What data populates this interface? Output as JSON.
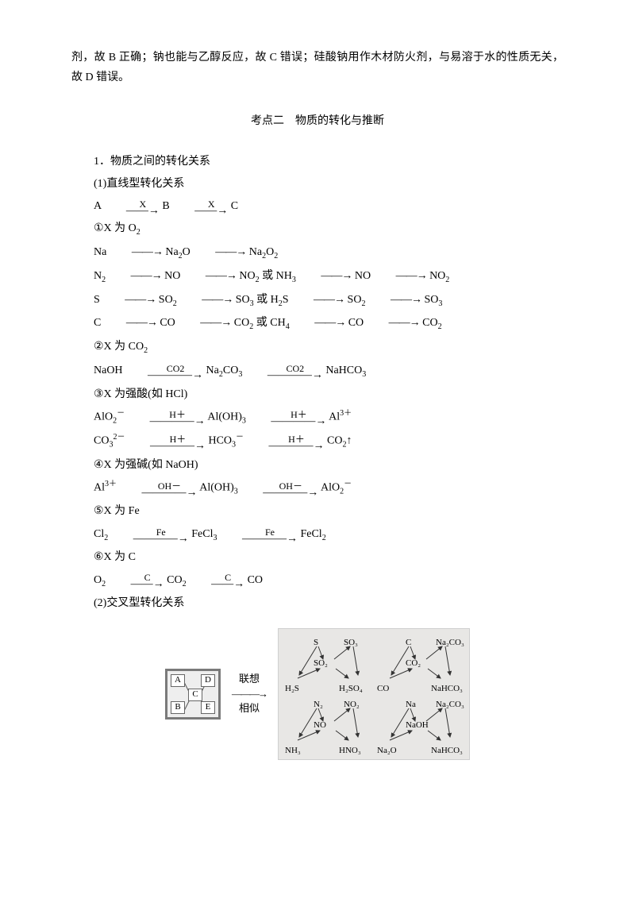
{
  "intro": "剂，故 B 正确；钠也能与乙醇反应，故 C 错误；硅酸钠用作木材防火剂，与易溶于水的性质无关，故 D 错误。",
  "section_title": "考点二　物质的转化与推断",
  "h1": "1．物质之间的转化关系",
  "h1_1": "(1)直线型转化关系",
  "line_generic": {
    "A": "A",
    "B": "B",
    "C": "C",
    "X": "X"
  },
  "case1_title": "①X 为 O",
  "case1_sub": "2",
  "case1_l1": [
    "Na",
    "Na",
    "O",
    "Na",
    "O"
  ],
  "case1_l2": [
    "N",
    "NO",
    "NO",
    "或 NH",
    "NO",
    "NO"
  ],
  "case1_l3": [
    "S",
    "SO",
    "SO",
    "或 H",
    "S",
    "SO",
    "SO"
  ],
  "case1_l4": [
    "C",
    "CO",
    "CO",
    "或 CH",
    "CO",
    "CO"
  ],
  "case2_title": "②X 为 CO",
  "case2_line": [
    "NaOH",
    "CO2",
    "Na",
    "CO",
    "CO2",
    "NaHCO"
  ],
  "case3_title": "③X 为强酸(如 HCl)",
  "case3_l1": [
    "AlO",
    "H＋",
    "Al(OH)",
    "H＋",
    "Al"
  ],
  "case3_l2": [
    "CO",
    "H＋",
    "HCO",
    "H＋",
    "CO",
    "↑"
  ],
  "case4_title": "④X 为强碱(如 NaOH)",
  "case4_line": [
    "Al",
    "OH－",
    "Al(OH)",
    "OH－",
    "AlO"
  ],
  "case5_title": "⑤X 为 Fe",
  "case5_line": [
    "Cl",
    "Fe",
    "FeCl",
    "Fe",
    "FeCl"
  ],
  "case6_title": "⑥X 为 C",
  "case6_line": [
    "O",
    "C",
    "CO",
    "C",
    "CO"
  ],
  "h1_2": "(2)交叉型转化关系",
  "abcde": {
    "A": "A",
    "B": "B",
    "C": "C",
    "D": "D",
    "E": "E"
  },
  "assoc": {
    "l1": "联想",
    "l2": "相似"
  },
  "quads": [
    {
      "top": "S",
      "right": "SO₃",
      "center": "SO₂",
      "left": "H₂S",
      "bottom": "H₂SO₄"
    },
    {
      "top": "C",
      "right": "Na₂CO₃",
      "center": "CO₂",
      "left": "CO",
      "bottom": "NaHCO₃"
    },
    {
      "top": "N₂",
      "right": "NO₂",
      "center": "NO",
      "left": "NH₃",
      "bottom": "HNO₃"
    },
    {
      "top": "Na",
      "right": "Na₂CO₃",
      "center": "NaOH",
      "left": "Na₂O",
      "bottom": "NaHCO₃"
    }
  ],
  "arrow_glyph": "――→",
  "long_arrow": "――――→"
}
